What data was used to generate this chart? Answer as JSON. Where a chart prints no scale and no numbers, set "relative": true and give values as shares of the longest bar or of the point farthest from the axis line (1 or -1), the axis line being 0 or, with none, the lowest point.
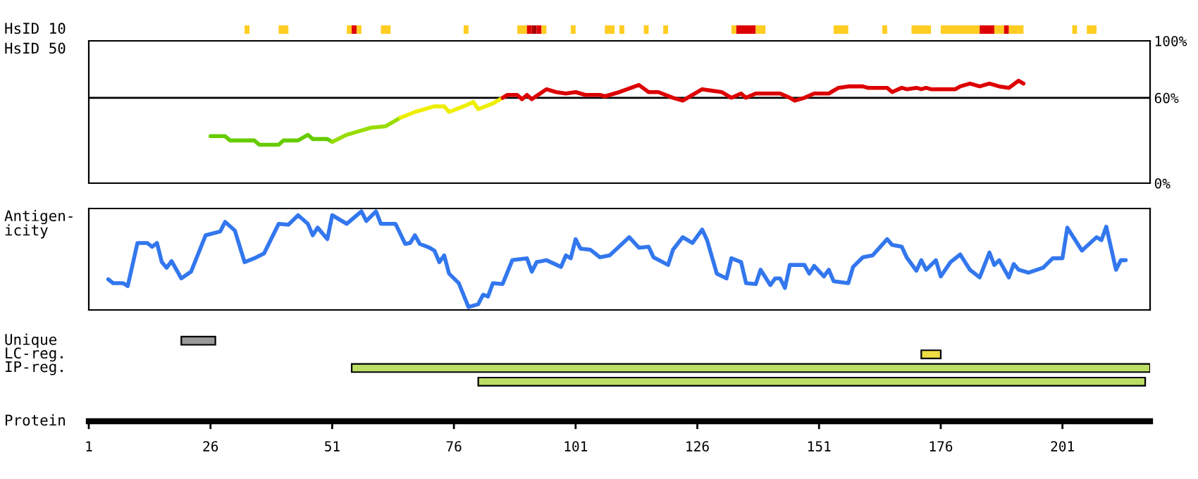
{
  "chart_data": [
    {
      "type": "bar",
      "orientation": "horizontal",
      "categories": [
        "HsID 10"
      ],
      "xlim": [
        1,
        219
      ],
      "tick_labels": false,
      "legend": false,
      "series": [
        {
          "color": "#ffcc22",
          "values": [
            1
          ],
          "base": [
            33
          ]
        },
        {
          "color": "#ffcc22",
          "values": [
            2
          ],
          "base": [
            40
          ]
        },
        {
          "color": "#ffcc22",
          "values": [
            1
          ],
          "base": [
            54
          ]
        },
        {
          "color": "#dd0000",
          "values": [
            1
          ],
          "base": [
            55
          ]
        },
        {
          "color": "#ffcc22",
          "values": [
            1
          ],
          "base": [
            56
          ]
        },
        {
          "color": "#ffcc22",
          "values": [
            2
          ],
          "base": [
            61
          ]
        },
        {
          "color": "#ffcc22",
          "values": [
            1
          ],
          "base": [
            78
          ]
        },
        {
          "color": "#ffcc22",
          "values": [
            2
          ],
          "base": [
            89
          ]
        },
        {
          "color": "#dd0000",
          "values": [
            1
          ],
          "base": [
            91
          ]
        },
        {
          "color": "#aa0000",
          "values": [
            1
          ],
          "base": [
            92
          ]
        },
        {
          "color": "#dd0000",
          "values": [
            1
          ],
          "base": [
            93
          ]
        },
        {
          "color": "#ffcc22",
          "values": [
            1
          ],
          "base": [
            94
          ]
        },
        {
          "color": "#ffcc22",
          "values": [
            1
          ],
          "base": [
            100
          ]
        },
        {
          "color": "#ffcc22",
          "values": [
            2
          ],
          "base": [
            107
          ]
        },
        {
          "color": "#ffcc22",
          "values": [
            1
          ],
          "base": [
            110
          ]
        },
        {
          "color": "#ffcc22",
          "values": [
            1
          ],
          "base": [
            115
          ]
        },
        {
          "color": "#ffcc22",
          "values": [
            1
          ],
          "base": [
            119
          ]
        },
        {
          "color": "#ffcc22",
          "values": [
            1
          ],
          "base": [
            133
          ]
        },
        {
          "color": "#dd0000",
          "values": [
            4
          ],
          "base": [
            134
          ]
        },
        {
          "color": "#ffcc22",
          "values": [
            2
          ],
          "base": [
            138
          ]
        },
        {
          "color": "#ffcc22",
          "values": [
            3
          ],
          "base": [
            154
          ]
        },
        {
          "color": "#ffcc22",
          "values": [
            1
          ],
          "base": [
            164
          ]
        },
        {
          "color": "#ffcc22",
          "values": [
            4
          ],
          "base": [
            170
          ]
        },
        {
          "color": "#ffcc22",
          "values": [
            8
          ],
          "base": [
            176
          ]
        },
        {
          "color": "#dd0000",
          "values": [
            3
          ],
          "base": [
            184
          ]
        },
        {
          "color": "#ffcc22",
          "values": [
            2
          ],
          "base": [
            187
          ]
        },
        {
          "color": "#dd0000",
          "values": [
            1
          ],
          "base": [
            189
          ]
        },
        {
          "color": "#ffcc22",
          "values": [
            3
          ],
          "base": [
            190
          ]
        },
        {
          "color": "#ffcc22",
          "values": [
            1
          ],
          "base": [
            203
          ]
        },
        {
          "color": "#ffcc22",
          "values": [
            2
          ],
          "base": [
            206
          ]
        }
      ]
    },
    {
      "type": "line",
      "ylabel": "HsID 50",
      "xlim": [
        1,
        219
      ],
      "ylim": [
        0,
        100
      ],
      "yticks": [
        {
          "value": 0,
          "label": "0%"
        },
        {
          "value": 60,
          "label": "60%"
        },
        {
          "value": 100,
          "label": "100%"
        }
      ],
      "tick_labels": "y",
      "grid": false,
      "legend": false,
      "marker": "none",
      "line_style": "solid",
      "ref_lines": [
        {
          "axis": "y",
          "value": 60,
          "color": "#000000"
        }
      ],
      "series": [
        {
          "color": "#66cc00",
          "x": [
            26,
            29,
            30,
            35,
            36,
            40,
            41,
            44,
            46,
            47,
            50,
            51
          ],
          "values": [
            33,
            33,
            30,
            30,
            27,
            27,
            30,
            30,
            34,
            31,
            31,
            29
          ]
        },
        {
          "color": "#99dd00",
          "x": [
            51,
            54,
            59,
            62,
            65
          ],
          "values": [
            29,
            34,
            39,
            40,
            46
          ]
        },
        {
          "color": "#eeee00",
          "x": [
            65,
            68,
            72,
            74,
            75,
            78,
            80,
            81,
            84,
            86
          ],
          "values": [
            46,
            50,
            54,
            54,
            50,
            54,
            57,
            52,
            56,
            60
          ]
        },
        {
          "color": "#dd0000",
          "x": [
            86,
            87,
            89,
            90,
            91,
            92,
            95,
            97,
            99,
            101,
            103,
            106,
            107,
            110,
            114,
            116,
            118,
            121,
            123,
            125,
            127,
            131,
            133,
            135,
            136,
            138,
            143,
            145,
            146,
            148,
            150,
            153,
            155,
            157,
            160,
            161,
            165,
            166,
            168,
            169,
            171,
            172,
            173,
            174,
            179,
            180,
            182,
            184,
            186,
            188,
            190,
            192,
            193
          ],
          "values": [
            60,
            62,
            62,
            59,
            62,
            59,
            66,
            64,
            63,
            64,
            62,
            62,
            61,
            64,
            69,
            64,
            64,
            60,
            58,
            62,
            66,
            64,
            60,
            63,
            60,
            63,
            63,
            60,
            58,
            60,
            63,
            63,
            67,
            68,
            68,
            67,
            67,
            64,
            67,
            66,
            67,
            66,
            67,
            66,
            66,
            68,
            70,
            68,
            70,
            68,
            67,
            72,
            70
          ]
        }
      ]
    },
    {
      "type": "line",
      "ylabel": "Antigen-\nicity",
      "relative": true,
      "xlim": [
        1,
        219
      ],
      "tick_labels": false,
      "grid": false,
      "legend": false,
      "marker": "none",
      "line_style": "solid",
      "series": [
        {
          "color": "#3377ee",
          "x": [
            5,
            6,
            8,
            9,
            11,
            13,
            14,
            15,
            16,
            17,
            18,
            20,
            22,
            25,
            28,
            29,
            31,
            33,
            35,
            37,
            40,
            42,
            44,
            46,
            47,
            48,
            50,
            51,
            54,
            57,
            58,
            60,
            61,
            64,
            66,
            67,
            68,
            69,
            71,
            72,
            73,
            74,
            75,
            77,
            79,
            81,
            82,
            83,
            84,
            86,
            88,
            91,
            92,
            93,
            95,
            98,
            99,
            100,
            101,
            102,
            104,
            106,
            108,
            112,
            114,
            116,
            117,
            120,
            121,
            123,
            125,
            127,
            128,
            130,
            132,
            133,
            135,
            136,
            138,
            139,
            141,
            142,
            143,
            144,
            145,
            148,
            149,
            150,
            152,
            153,
            154,
            157,
            158,
            160,
            162,
            165,
            166,
            168,
            169,
            171,
            172,
            173,
            175,
            176,
            178,
            180,
            182,
            184,
            186,
            187,
            188,
            190,
            191,
            192,
            194,
            197,
            199,
            201,
            202,
            205,
            208,
            209,
            210,
            212,
            213,
            214
          ],
          "values": [
            0.29,
            0.25,
            0.25,
            0.22,
            0.67,
            0.67,
            0.63,
            0.67,
            0.47,
            0.41,
            0.48,
            0.3,
            0.37,
            0.75,
            0.79,
            0.89,
            0.8,
            0.47,
            0.51,
            0.56,
            0.87,
            0.86,
            0.96,
            0.87,
            0.75,
            0.83,
            0.71,
            0.96,
            0.87,
            1.0,
            0.9,
            1.0,
            0.87,
            0.87,
            0.66,
            0.67,
            0.75,
            0.66,
            0.62,
            0.59,
            0.47,
            0.54,
            0.35,
            0.25,
            0.0,
            0.03,
            0.13,
            0.11,
            0.25,
            0.24,
            0.49,
            0.51,
            0.37,
            0.47,
            0.49,
            0.42,
            0.54,
            0.51,
            0.71,
            0.61,
            0.6,
            0.52,
            0.54,
            0.73,
            0.62,
            0.63,
            0.52,
            0.44,
            0.6,
            0.73,
            0.67,
            0.81,
            0.7,
            0.35,
            0.3,
            0.51,
            0.47,
            0.25,
            0.24,
            0.39,
            0.23,
            0.3,
            0.3,
            0.2,
            0.44,
            0.44,
            0.35,
            0.43,
            0.32,
            0.39,
            0.27,
            0.25,
            0.42,
            0.52,
            0.54,
            0.71,
            0.65,
            0.63,
            0.52,
            0.38,
            0.49,
            0.39,
            0.49,
            0.32,
            0.47,
            0.55,
            0.39,
            0.31,
            0.57,
            0.44,
            0.49,
            0.31,
            0.45,
            0.39,
            0.36,
            0.41,
            0.51,
            0.51,
            0.83,
            0.59,
            0.73,
            0.7,
            0.84,
            0.39,
            0.49,
            0.49
          ]
        }
      ]
    },
    {
      "type": "bar",
      "orientation": "horizontal",
      "xlabel": "Protein",
      "categories": [
        "Unique",
        "LC-reg.",
        "IP-reg.",
        null
      ],
      "values": [
        7,
        4,
        164,
        137
      ],
      "base": [
        20,
        172,
        55,
        81
      ],
      "colors": [
        "#999999",
        "#eedd44",
        "#bbdd66",
        "#bbdd66"
      ],
      "xlim": [
        1,
        219
      ],
      "xticks": [
        1,
        26,
        51,
        76,
        101,
        126,
        151,
        176,
        201
      ],
      "legend": false
    }
  ]
}
